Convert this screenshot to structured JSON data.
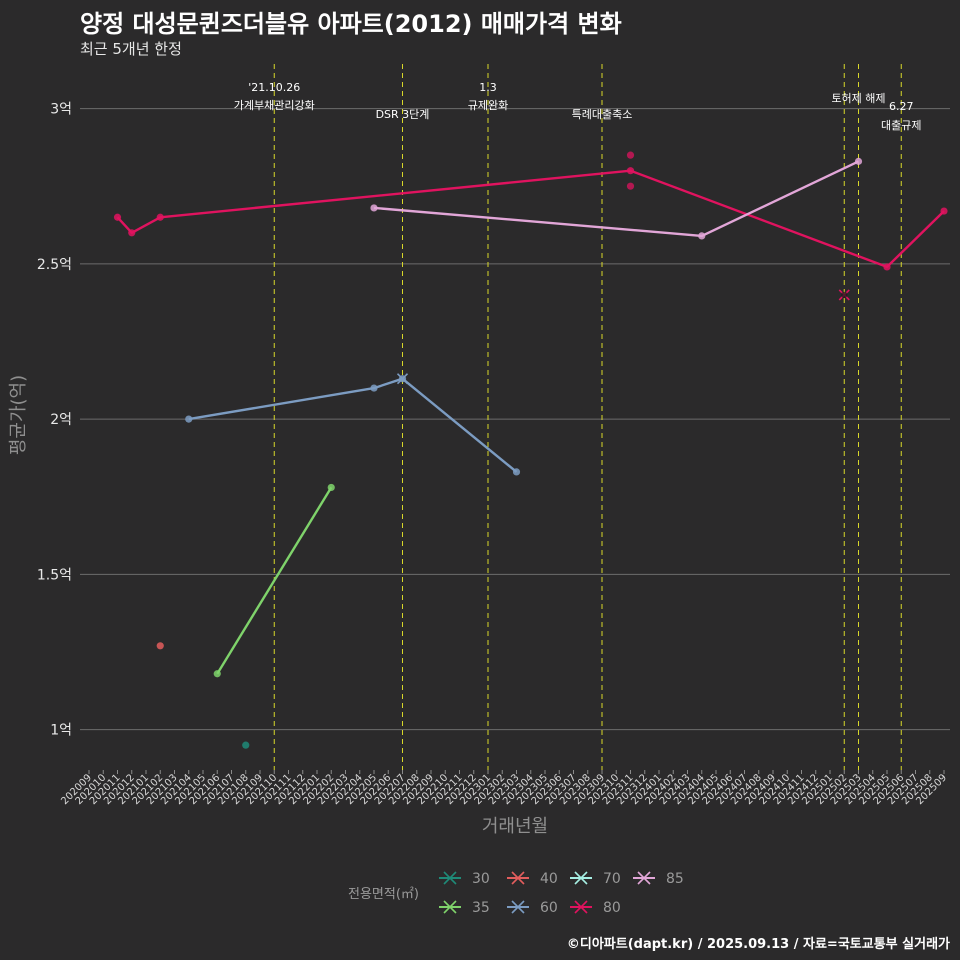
{
  "title": "양정 대성문퀸즈더블유 아파트(2012) 매매가격 변화",
  "subtitle": "최근 5개년 한정",
  "caption": "©디아파트(dapt.kr) / 2025.09.13 / 자료=국토교통부 실거래가",
  "chart_data": {
    "type": "line",
    "xlabel": "거래년월",
    "ylabel": "평균가(억)",
    "x_categories": [
      "202009",
      "202010",
      "202011",
      "202012",
      "202101",
      "202102",
      "202103",
      "202104",
      "202105",
      "202106",
      "202107",
      "202108",
      "202109",
      "202110",
      "202111",
      "202112",
      "202201",
      "202202",
      "202203",
      "202204",
      "202205",
      "202206",
      "202207",
      "202208",
      "202209",
      "202210",
      "202211",
      "202212",
      "202301",
      "202302",
      "202303",
      "202304",
      "202305",
      "202306",
      "202307",
      "202308",
      "202309",
      "202310",
      "202311",
      "202312",
      "202401",
      "202402",
      "202403",
      "202404",
      "202405",
      "202406",
      "202407",
      "202408",
      "202409",
      "202410",
      "202411",
      "202412",
      "202501",
      "202502",
      "202503",
      "202504",
      "202505",
      "202506",
      "202507",
      "202508",
      "202509"
    ],
    "y_ticks": [
      {
        "value": 1.0,
        "label": "1억"
      },
      {
        "value": 1.5,
        "label": "1.5억"
      },
      {
        "value": 2.0,
        "label": "2억"
      },
      {
        "value": 2.5,
        "label": "2.5억"
      },
      {
        "value": 3.0,
        "label": "3억"
      }
    ],
    "ylim": [
      0.87,
      3.15
    ],
    "grid": true,
    "legend_title": "전용면적(㎡)",
    "legend_position": "bottom",
    "events": [
      {
        "x": "202110",
        "lines": [
          "'21.10.26",
          "가계부채관리강화"
        ]
      },
      {
        "x": "202207",
        "lines": [
          "DSR 3단계"
        ]
      },
      {
        "x": "202301",
        "lines": [
          "1.3",
          "규제완화"
        ]
      },
      {
        "x": "202309",
        "lines": [
          "특례대출축소"
        ]
      },
      {
        "x": "202502",
        "lines": []
      },
      {
        "x": "202503",
        "lines": [
          "토허제 해제"
        ]
      },
      {
        "x": "202506",
        "lines": [
          "6.27",
          "대출규제"
        ]
      }
    ],
    "series": [
      {
        "name": "30",
        "color": "#1f8a78",
        "points": [
          {
            "x": "202108",
            "y": 0.95
          }
        ]
      },
      {
        "name": "35",
        "color": "#7fd36b",
        "points": [
          {
            "x": "202106",
            "y": 1.18
          },
          {
            "x": "202202",
            "y": 1.78
          }
        ]
      },
      {
        "name": "40",
        "color": "#e35d5d",
        "points": [
          {
            "x": "202102",
            "y": 1.27
          }
        ]
      },
      {
        "name": "60",
        "color": "#7c9cc2",
        "points": [
          {
            "x": "202104",
            "y": 2.0
          },
          {
            "x": "202205",
            "y": 2.1
          },
          {
            "x": "202207",
            "y": 2.13
          },
          {
            "x": "202303",
            "y": 1.83
          }
        ]
      },
      {
        "name": "70",
        "color": "#a6efe4",
        "points": []
      },
      {
        "name": "80",
        "color": "#e0135f",
        "points": [
          {
            "x": "202011",
            "y": 2.65
          },
          {
            "x": "202012",
            "y": 2.6
          },
          {
            "x": "202102",
            "y": 2.65
          },
          {
            "x": "202311",
            "y": 2.8
          },
          {
            "x": "202505",
            "y": 2.49
          },
          {
            "x": "202509",
            "y": 2.67
          }
        ]
      },
      {
        "name": "85",
        "color": "#e2a6d8",
        "points": [
          {
            "x": "202205",
            "y": 2.68
          },
          {
            "x": "202404",
            "y": 2.59
          },
          {
            "x": "202503",
            "y": 2.83
          }
        ]
      }
    ],
    "individual_trades": [
      {
        "series": "80",
        "x": "202311",
        "y": 2.85
      },
      {
        "series": "80",
        "x": "202311",
        "y": 2.75
      }
    ],
    "cross_markers": [
      {
        "series": "60",
        "x": "202207",
        "y": 2.13
      },
      {
        "series": "80",
        "x": "202502",
        "y": 2.4
      }
    ]
  }
}
